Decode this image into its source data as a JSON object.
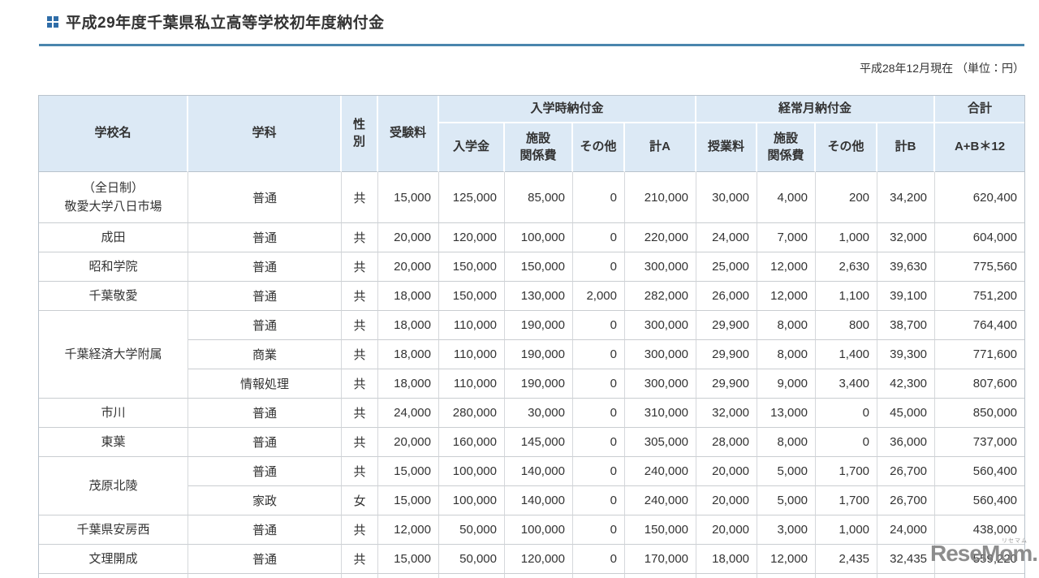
{
  "header": {
    "title": "平成29年度千葉県私立高等学校初年度納付金",
    "note": "平成28年12月現在 （単位：円）"
  },
  "watermark": {
    "text": "ReseMom.",
    "ruby": "リセマム"
  },
  "colors": {
    "accent_line": "#4a86ad",
    "header_bg": "#dce9f5",
    "icon_blue": "#2f6da8",
    "border_gray": "#c9cdd1"
  },
  "table": {
    "headers": {
      "school": "学校名",
      "dept": "学科",
      "gender": "性\n別",
      "exam_fee": "受験料",
      "entry_group": "入学時納付金",
      "entry_cols": [
        "入学金",
        "施設\n関係費",
        "その他",
        "計A"
      ],
      "monthly_group": "経常月納付金",
      "monthly_cols": [
        "授業料",
        "施設\n関係費",
        "その他",
        "計B"
      ],
      "total_group": "合計",
      "total_col": "A+B＊12"
    },
    "rows": [
      {
        "school": "（全日制）\n敬愛大学八日市場",
        "school_rowspan": 1,
        "tall": true,
        "dept": "普通",
        "gender": "共",
        "values": [
          "15,000",
          "125,000",
          "85,000",
          "0",
          "210,000",
          "30,000",
          "4,000",
          "200",
          "34,200",
          "620,400"
        ]
      },
      {
        "school": "成田",
        "school_rowspan": 1,
        "dept": "普通",
        "gender": "共",
        "values": [
          "20,000",
          "120,000",
          "100,000",
          "0",
          "220,000",
          "24,000",
          "7,000",
          "1,000",
          "32,000",
          "604,000"
        ]
      },
      {
        "school": "昭和学院",
        "school_rowspan": 1,
        "dept": "普通",
        "gender": "共",
        "values": [
          "20,000",
          "150,000",
          "150,000",
          "0",
          "300,000",
          "25,000",
          "12,000",
          "2,630",
          "39,630",
          "775,560"
        ]
      },
      {
        "school": "千葉敬愛",
        "school_rowspan": 1,
        "dept": "普通",
        "gender": "共",
        "values": [
          "18,000",
          "150,000",
          "130,000",
          "2,000",
          "282,000",
          "26,000",
          "12,000",
          "1,100",
          "39,100",
          "751,200"
        ]
      },
      {
        "school": "千葉経済大学附属",
        "school_rowspan": 3,
        "dept": "普通",
        "gender": "共",
        "values": [
          "18,000",
          "110,000",
          "190,000",
          "0",
          "300,000",
          "29,900",
          "8,000",
          "800",
          "38,700",
          "764,400"
        ]
      },
      {
        "school": null,
        "dept": "商業",
        "gender": "共",
        "values": [
          "18,000",
          "110,000",
          "190,000",
          "0",
          "300,000",
          "29,900",
          "8,000",
          "1,400",
          "39,300",
          "771,600"
        ]
      },
      {
        "school": null,
        "dept": "情報処理",
        "gender": "共",
        "values": [
          "18,000",
          "110,000",
          "190,000",
          "0",
          "300,000",
          "29,900",
          "9,000",
          "3,400",
          "42,300",
          "807,600"
        ]
      },
      {
        "school": "市川",
        "school_rowspan": 1,
        "dept": "普通",
        "gender": "共",
        "values": [
          "24,000",
          "280,000",
          "30,000",
          "0",
          "310,000",
          "32,000",
          "13,000",
          "0",
          "45,000",
          "850,000"
        ]
      },
      {
        "school": "東葉",
        "school_rowspan": 1,
        "dept": "普通",
        "gender": "共",
        "values": [
          "20,000",
          "160,000",
          "145,000",
          "0",
          "305,000",
          "28,000",
          "8,000",
          "0",
          "36,000",
          "737,000"
        ]
      },
      {
        "school": "茂原北陵",
        "school_rowspan": 2,
        "dept": "普通",
        "gender": "共",
        "values": [
          "15,000",
          "100,000",
          "140,000",
          "0",
          "240,000",
          "20,000",
          "5,000",
          "1,700",
          "26,700",
          "560,400"
        ]
      },
      {
        "school": null,
        "dept": "家政",
        "gender": "女",
        "values": [
          "15,000",
          "100,000",
          "140,000",
          "0",
          "240,000",
          "20,000",
          "5,000",
          "1,700",
          "26,700",
          "560,400"
        ]
      },
      {
        "school": "千葉県安房西",
        "school_rowspan": 1,
        "dept": "普通",
        "gender": "共",
        "values": [
          "12,000",
          "50,000",
          "100,000",
          "0",
          "150,000",
          "20,000",
          "3,000",
          "1,000",
          "24,000",
          "438,000"
        ]
      },
      {
        "school": "文理開成",
        "school_rowspan": 1,
        "dept": "普通",
        "gender": "共",
        "values": [
          "15,000",
          "50,000",
          "120,000",
          "0",
          "170,000",
          "18,000",
          "12,000",
          "2,435",
          "32,435",
          "559,220"
        ]
      }
    ]
  }
}
